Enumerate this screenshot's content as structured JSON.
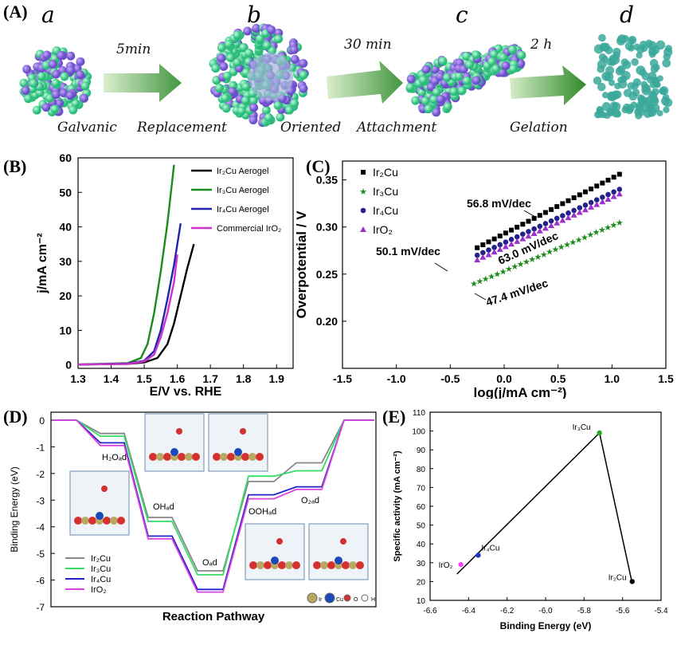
{
  "panel_a": {
    "label": "(A)",
    "stages": [
      "a",
      "b",
      "c",
      "d"
    ],
    "times": [
      "5min",
      "30 min",
      "2 h"
    ],
    "steps": [
      "Galvanic",
      "Replacement",
      "Oriented",
      "Attachment",
      "Gelation"
    ]
  },
  "chart_data": [
    {
      "panel": "(B)",
      "type": "line",
      "xlabel": "E/V vs. RHE",
      "ylabel": "j/mA cm⁻²",
      "xlim": [
        1.3,
        1.95
      ],
      "ylim": [
        -1,
        60
      ],
      "xticks": [
        "1.3",
        "1.4",
        "1.5",
        "1.6",
        "1.7",
        "1.8",
        "1.9"
      ],
      "yticks": [
        "0",
        "10",
        "20",
        "30",
        "40",
        "50",
        "60"
      ],
      "legend_position": "top-right",
      "series": [
        {
          "name": "Ir₂Cu Aerogel",
          "color": "#000000",
          "x": [
            1.3,
            1.45,
            1.5,
            1.54,
            1.57,
            1.59,
            1.61,
            1.63,
            1.65
          ],
          "y": [
            0.1,
            0.3,
            0.7,
            2,
            6,
            12,
            20,
            28,
            35
          ]
        },
        {
          "name": "Ir₃Cu Aerogel",
          "color": "#1a8c1a",
          "x": [
            1.3,
            1.45,
            1.49,
            1.51,
            1.53,
            1.55,
            1.57,
            1.59
          ],
          "y": [
            0.1,
            0.5,
            2,
            6,
            15,
            27,
            41,
            58
          ]
        },
        {
          "name": "Ir₄Cu Aerogel",
          "color": "#2222aa",
          "x": [
            1.3,
            1.45,
            1.5,
            1.53,
            1.55,
            1.57,
            1.59,
            1.61
          ],
          "y": [
            0.1,
            0.4,
            1.2,
            4,
            10,
            19,
            29,
            41
          ]
        },
        {
          "name": "Commercial IrO₂",
          "color": "#cc33cc",
          "x": [
            1.3,
            1.45,
            1.5,
            1.53,
            1.55,
            1.57,
            1.59,
            1.6
          ],
          "y": [
            0.1,
            0.3,
            1,
            3,
            8,
            15,
            24,
            32
          ]
        }
      ]
    },
    {
      "panel": "(C)",
      "type": "scatter",
      "xlabel": "log(j/mA cm⁻²)",
      "ylabel": "Overpotential / V",
      "xlim": [
        -1.5,
        1.5
      ],
      "ylim": [
        0.15,
        0.37
      ],
      "xticks": [
        "-1.5",
        "-1.0",
        "-0.5",
        "0.0",
        "0.5",
        "1.0",
        "1.5"
      ],
      "yticks": [
        "0.20",
        "0.25",
        "0.30",
        "0.35"
      ],
      "legend_position": "top-left",
      "series": [
        {
          "name": "Ir₂Cu",
          "color": "#000000",
          "marker": "square",
          "x_start": -0.25,
          "x_end": 1.07,
          "y_start": 0.278,
          "y_end": 0.356,
          "points": 26
        },
        {
          "name": "Ir₃Cu",
          "color": "#1a8c1a",
          "marker": "star",
          "x_start": -0.28,
          "x_end": 1.07,
          "y_start": 0.24,
          "y_end": 0.305,
          "points": 26
        },
        {
          "name": "Ir₄Cu",
          "color": "#222288",
          "marker": "circle",
          "x_start": -0.25,
          "x_end": 1.07,
          "y_start": 0.27,
          "y_end": 0.34,
          "points": 26
        },
        {
          "name": "IrO₂",
          "color": "#9933cc",
          "marker": "triangle",
          "x_start": -0.25,
          "x_end": 1.07,
          "y_start": 0.265,
          "y_end": 0.335,
          "points": 26
        }
      ],
      "annotations": [
        "56.8 mV/dec",
        "50.1 mV/dec",
        "63.0 mV/dec",
        "47.4 mV/dec"
      ]
    },
    {
      "panel": "(D)",
      "type": "line",
      "xlabel": "Reaction Pathway",
      "ylabel": "Binding Energy (eV)",
      "ylim": [
        -7,
        0.3
      ],
      "yticks": [
        "0",
        "-1",
        "-2",
        "-3",
        "-4",
        "-5",
        "-6",
        "-7"
      ],
      "states": [
        "",
        "H₂Oₐd",
        "OHₐd",
        "Oₐd",
        "OOHₐd",
        "O₂ₐd",
        ""
      ],
      "series": [
        {
          "name": "Ir₂Cu",
          "color": "#888888",
          "values": [
            0,
            -0.5,
            -3.65,
            -5.65,
            -2.3,
            -1.6,
            0
          ]
        },
        {
          "name": "Ir₃Cu",
          "color": "#33dd66",
          "values": [
            0,
            -0.6,
            -3.8,
            -5.8,
            -2.1,
            -1.9,
            0
          ]
        },
        {
          "name": "Ir₄Cu",
          "color": "#2222cc",
          "values": [
            0,
            -0.85,
            -4.35,
            -6.35,
            -2.8,
            -2.5,
            0
          ]
        },
        {
          "name": "IrO₂",
          "color": "#dd44dd",
          "values": [
            0,
            -0.95,
            -4.45,
            -6.45,
            -2.95,
            -2.6,
            0
          ]
        }
      ],
      "legend_position": "bottom-left",
      "atom_legend": [
        "Ir",
        "Cu",
        "O",
        "H"
      ]
    },
    {
      "panel": "(E)",
      "type": "scatter",
      "xlabel": "Binding Energy (eV)",
      "ylabel": "Specific activity (mA cm⁻²)",
      "xlim": [
        -6.6,
        -5.4
      ],
      "ylim": [
        10,
        110
      ],
      "xticks": [
        "-6.6",
        "-6.4",
        "-6.2",
        "-6.0",
        "-5.8",
        "-5.6",
        "-5.4"
      ],
      "yticks": [
        "10",
        "20",
        "30",
        "40",
        "50",
        "60",
        "70",
        "80",
        "90",
        "100",
        "110"
      ],
      "points": [
        {
          "label": "IrO₂",
          "x": -6.44,
          "y": 29,
          "color": "#ff44ff"
        },
        {
          "label": "Ir₄Cu",
          "x": -6.35,
          "y": 34,
          "color": "#2233cc"
        },
        {
          "label": "Ir₃Cu",
          "x": -5.72,
          "y": 99,
          "color": "#22aa22"
        },
        {
          "label": "Ir₂Cu",
          "x": -5.55,
          "y": 20,
          "color": "#000000"
        }
      ],
      "volcano": [
        [
          -6.46,
          24
        ],
        [
          -5.72,
          99
        ],
        [
          -5.55,
          19
        ]
      ]
    }
  ],
  "labels": {
    "b": "(B)",
    "c": "(C)",
    "d": "(D)",
    "e": "(E)"
  }
}
